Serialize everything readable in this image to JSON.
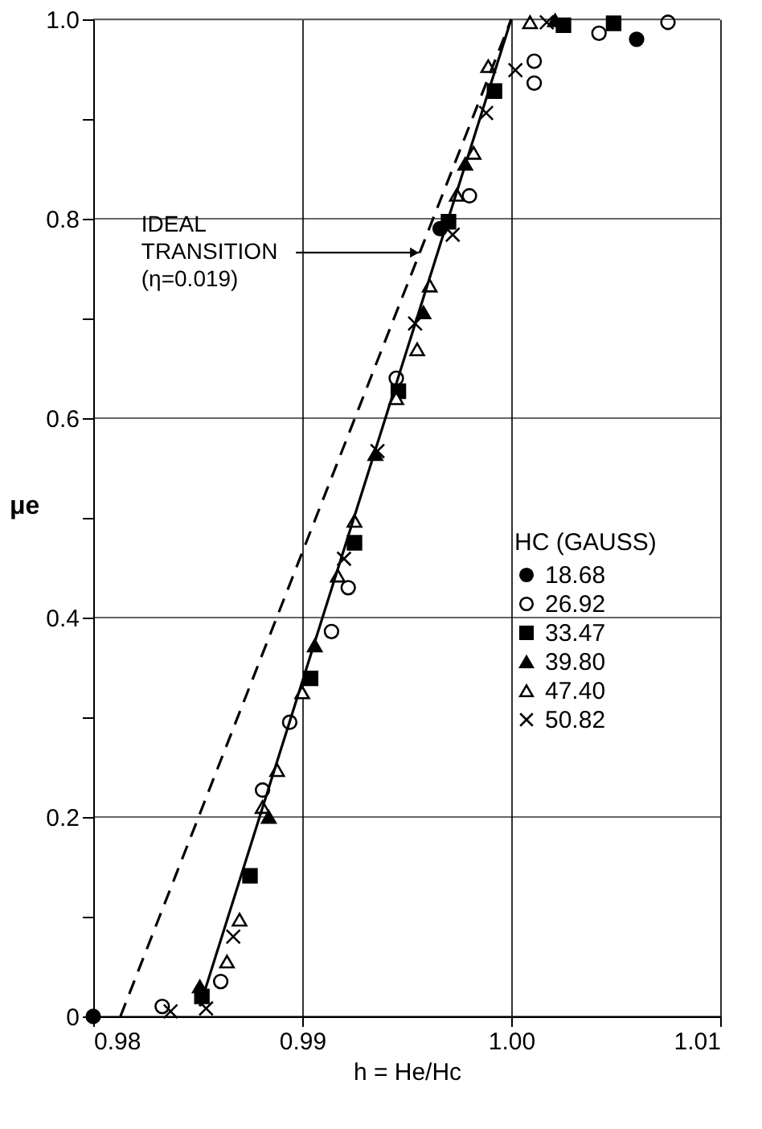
{
  "chart_data": {
    "type": "scatter",
    "xlabel": "h = He/Hc",
    "ylabel": "μe",
    "legend_title": "HC (GAUSS)",
    "xlim": [
      0.98,
      1.01
    ],
    "xticks": [
      0.98,
      0.99,
      {
        "value": 1.0,
        "label": "1.00"
      },
      1.01
    ],
    "ylim": [
      0,
      1
    ],
    "yticks": [
      0,
      {
        "value": 0.1,
        "label": null
      },
      0.2,
      {
        "value": 0.3,
        "label": null
      },
      0.4,
      {
        "value": 0.5,
        "label": null
      },
      0.6,
      {
        "value": 0.7,
        "label": null
      },
      0.8,
      {
        "value": 0.9,
        "label": null
      },
      {
        "value": 1.0,
        "label": "1.0"
      }
    ],
    "grid": true,
    "legend": "right",
    "annotations": [
      {
        "text": "IDEAL\nTRANSITION\n(η=0.019)",
        "x": 0.9956,
        "y": 0.766
      }
    ],
    "series": [
      {
        "name": "18.68",
        "color": "#000000",
        "marker": "circle",
        "x": [
          0.98,
          0.9966,
          1.006
        ],
        "values": [
          0,
          0.79,
          0.98
        ]
      },
      {
        "name": "26.92",
        "color": "#000000",
        "marker": "circle-open",
        "x": [
          0.9833,
          0.9861,
          0.9881,
          0.9894,
          0.9914,
          0.9922,
          0.9945,
          0.998,
          1.0011,
          1.0011,
          1.0042,
          1.0075
        ],
        "values": [
          0.01,
          0.035,
          0.227,
          0.295,
          0.386,
          0.43,
          0.64,
          0.823,
          0.958,
          0.936,
          0.986,
          0.997
        ]
      },
      {
        "name": "33.47",
        "color": "#000000",
        "marker": "square",
        "x": [
          0.9852,
          0.9875,
          0.9904,
          0.9925,
          0.9946,
          0.997,
          0.9992,
          1.0025,
          1.0049
        ],
        "values": [
          0.02,
          0.141,
          0.339,
          0.475,
          0.627,
          0.797,
          0.928,
          0.994,
          0.996
        ]
      },
      {
        "name": "39.80",
        "color": "#000000",
        "marker": "triangle",
        "x": [
          0.9851,
          0.9884,
          0.9906,
          0.9935,
          0.9958,
          0.9978,
          1.0021
        ],
        "values": [
          0.03,
          0.2,
          0.372,
          0.564,
          0.706,
          0.855,
          0.999
        ]
      },
      {
        "name": "47.40",
        "color": "#000000",
        "marker": "triangle-open",
        "x": [
          0.9864,
          0.987,
          0.9881,
          0.9888,
          0.99,
          0.9917,
          0.9925,
          0.9945,
          0.9955,
          0.9961,
          0.9974,
          0.9982,
          0.9989,
          1.0009
        ],
        "values": [
          0.055,
          0.097,
          0.21,
          0.247,
          0.325,
          0.442,
          0.497,
          0.62,
          0.669,
          0.733,
          0.824,
          0.866,
          0.953,
          0.997
        ]
      },
      {
        "name": "50.82",
        "color": "#000000",
        "marker": "cross",
        "x": [
          0.9837,
          0.9854,
          0.9867,
          0.992,
          0.9936,
          0.9954,
          0.9972,
          0.9988,
          1.0002,
          1.0017
        ],
        "values": [
          0.005,
          0.008,
          0.08,
          0.459,
          0.567,
          0.695,
          0.784,
          0.906,
          0.949,
          0.997
        ]
      },
      {
        "type": "line",
        "color": "#000000",
        "marker": "none",
        "line_style": "solid",
        "x": [
          0.9851,
          1.0
        ],
        "values": [
          0.01,
          1.0
        ]
      },
      {
        "type": "line",
        "color": "#000000",
        "marker": "none",
        "line_style": "dashed",
        "x": [
          0.9813,
          1.0
        ],
        "values": [
          0,
          1.0
        ]
      }
    ]
  }
}
